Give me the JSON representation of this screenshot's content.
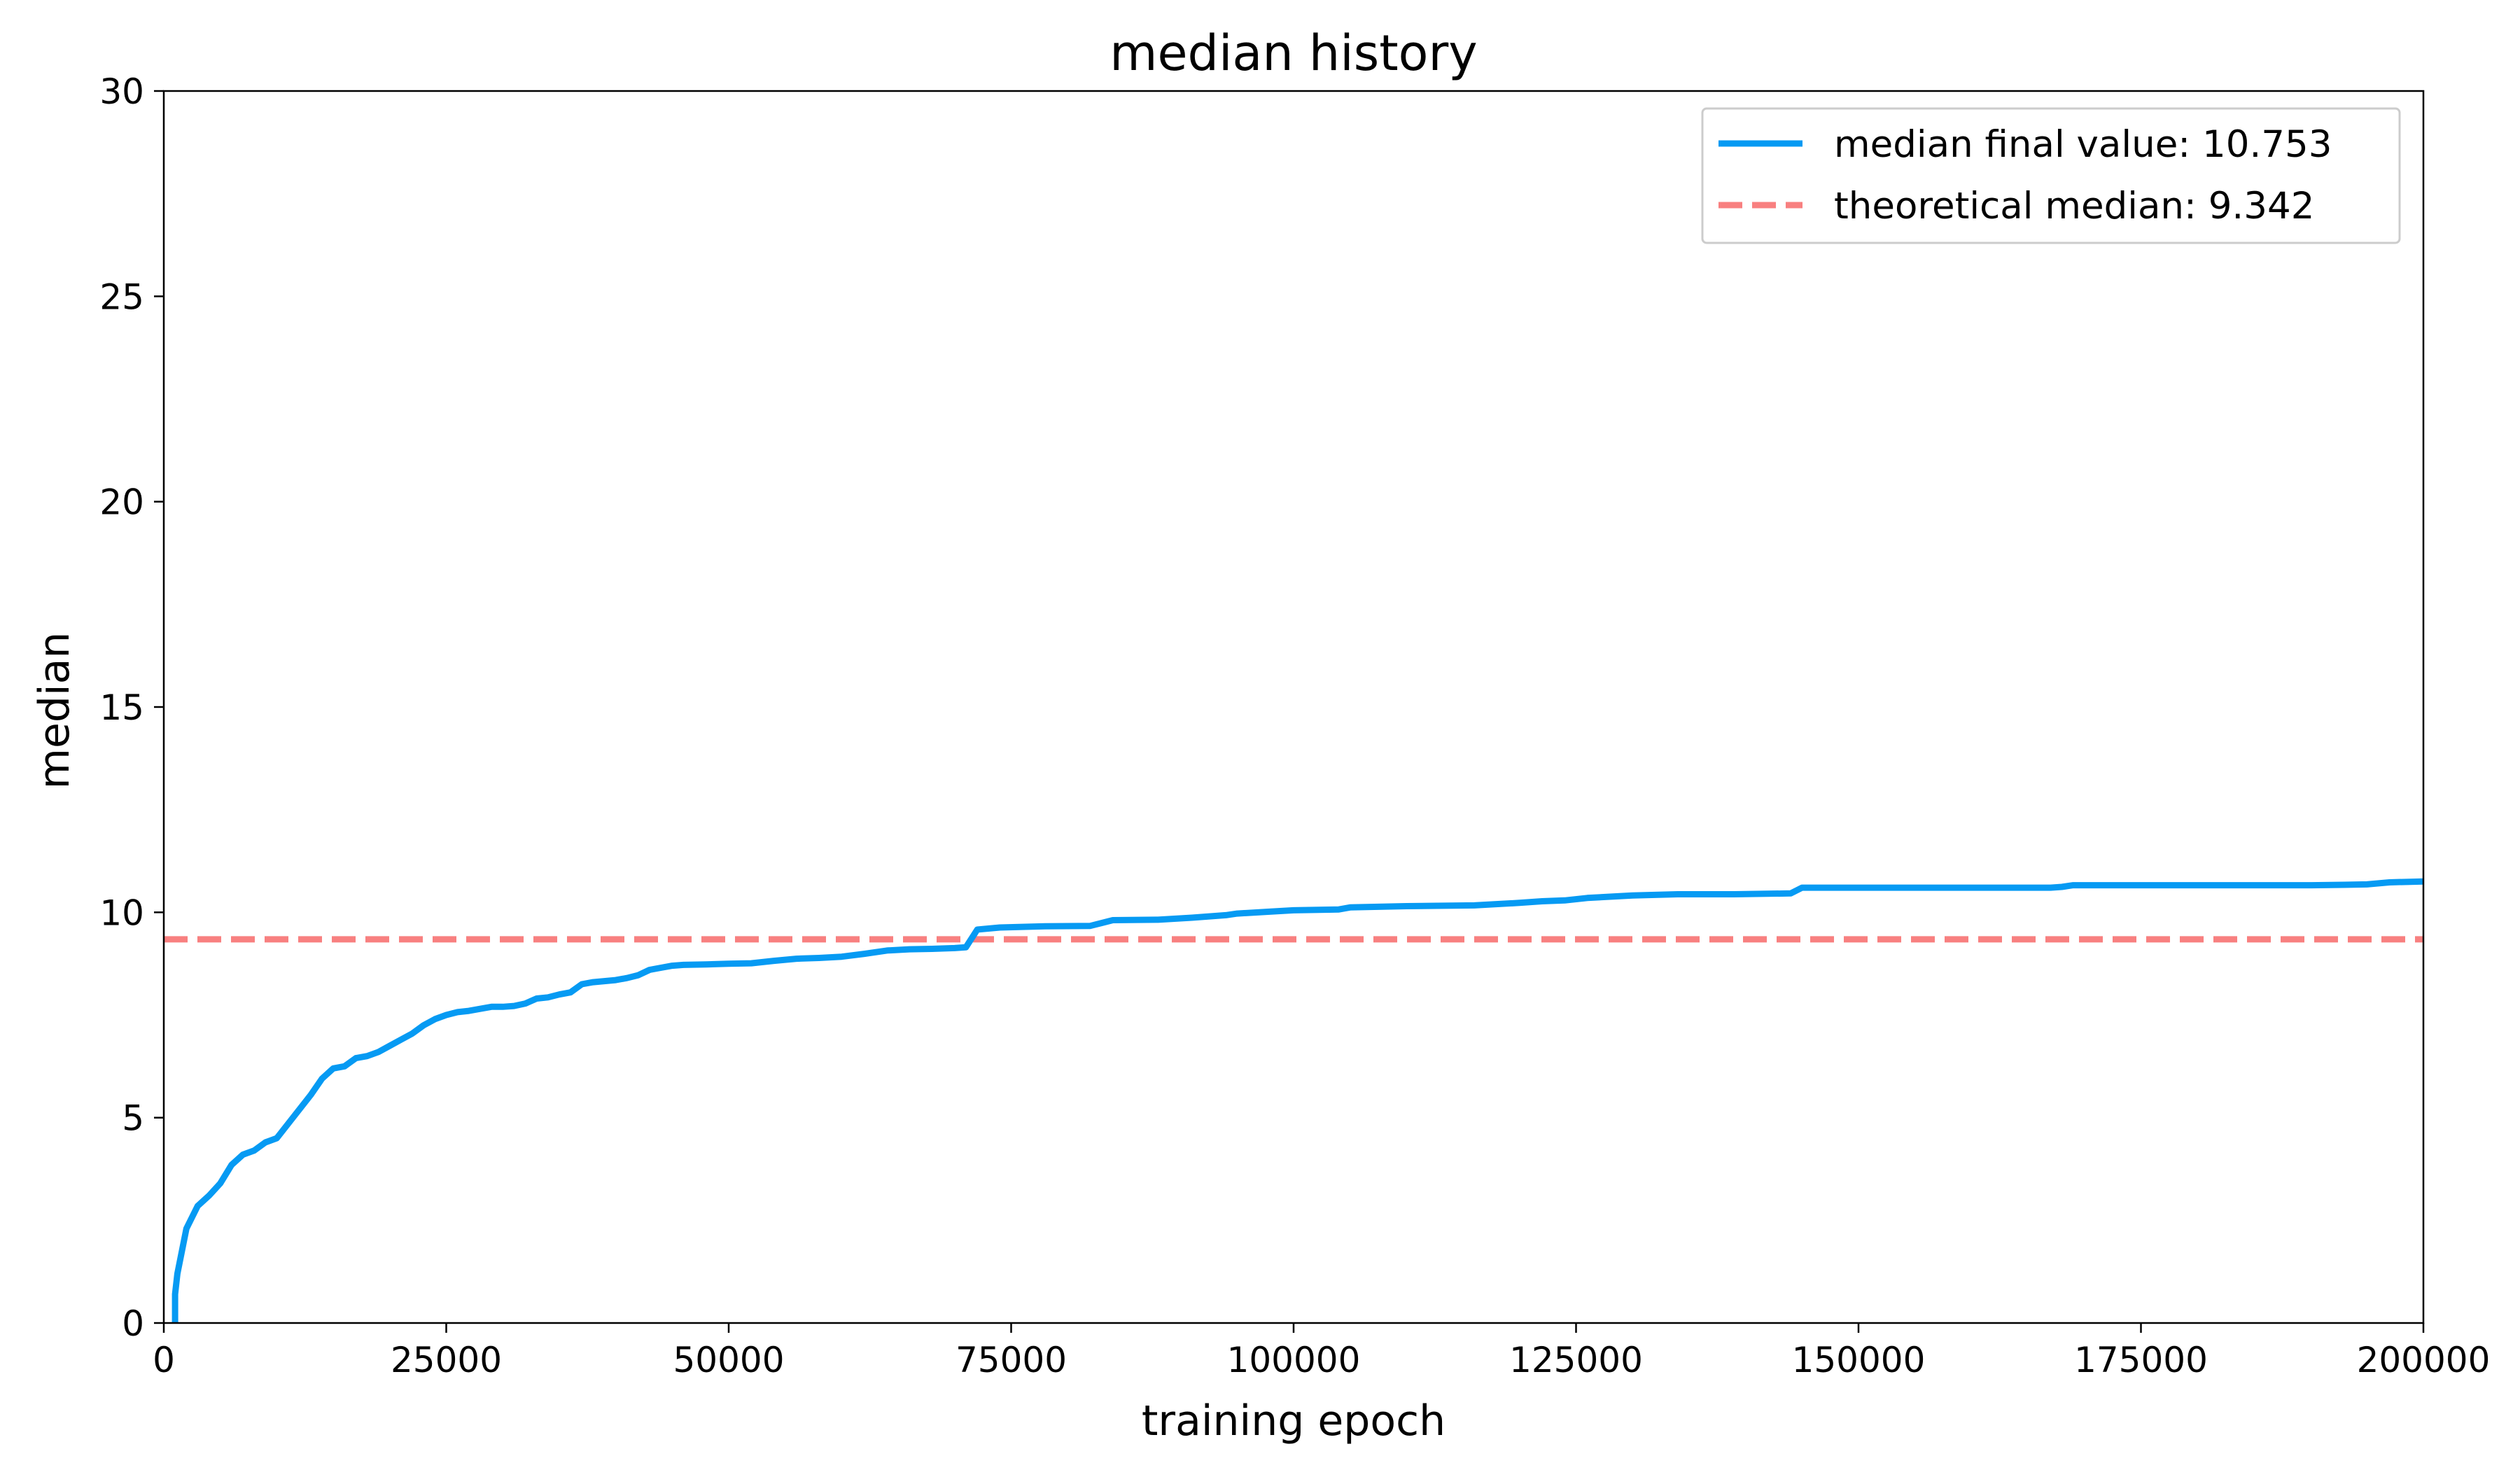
{
  "chart_data": {
    "type": "line",
    "title": "median history",
    "xlabel": "training epoch",
    "ylabel": "median",
    "xlim": [
      0,
      200000
    ],
    "ylim": [
      0,
      30
    ],
    "x_ticks": [
      0,
      25000,
      50000,
      75000,
      100000,
      125000,
      150000,
      175000,
      200000
    ],
    "y_ticks": [
      0,
      5,
      10,
      15,
      20,
      25,
      30
    ],
    "grid": false,
    "legend_position": "top-right",
    "series": [
      {
        "name": "median final value: 10.753",
        "style": "solid",
        "color": "#069af3",
        "x": [
          1000,
          1000,
          1200,
          2000,
          3000,
          4000,
          5000,
          6000,
          7000,
          8000,
          9000,
          10000,
          11000,
          12000,
          13000,
          14000,
          15000,
          16000,
          17000,
          18000,
          19000,
          20000,
          21000,
          22000,
          23000,
          24000,
          25000,
          26000,
          27000,
          28000,
          29000,
          30000,
          31000,
          32000,
          33000,
          34000,
          35000,
          36000,
          37000,
          38000,
          40000,
          41000,
          42000,
          43000,
          44000,
          45000,
          46000,
          48000,
          50000,
          52000,
          54000,
          56000,
          58000,
          60000,
          62000,
          64000,
          66000,
          68000,
          70000,
          71000,
          72000,
          74000,
          78000,
          82000,
          83000,
          84000,
          88000,
          91000,
          94000,
          95000,
          98000,
          100000,
          104000,
          105000,
          110000,
          116000,
          120000,
          122000,
          124000,
          126000,
          130000,
          134000,
          139000,
          144000,
          145000,
          150000,
          160000,
          167000,
          168000,
          169000,
          175000,
          185000,
          190000,
          193000,
          195000,
          197000,
          200000
        ],
        "y": [
          0.0,
          0.7,
          1.2,
          2.3,
          2.85,
          3.1,
          3.4,
          3.85,
          4.1,
          4.2,
          4.4,
          4.5,
          4.85,
          5.2,
          5.55,
          5.95,
          6.2,
          6.25,
          6.45,
          6.5,
          6.6,
          6.75,
          6.9,
          7.05,
          7.25,
          7.4,
          7.5,
          7.57,
          7.6,
          7.65,
          7.7,
          7.7,
          7.72,
          7.78,
          7.9,
          7.93,
          8.0,
          8.05,
          8.25,
          8.3,
          8.35,
          8.4,
          8.47,
          8.6,
          8.65,
          8.7,
          8.72,
          8.73,
          8.75,
          8.76,
          8.82,
          8.87,
          8.89,
          8.92,
          8.99,
          9.07,
          9.1,
          9.11,
          9.13,
          9.15,
          9.58,
          9.63,
          9.66,
          9.67,
          9.74,
          9.81,
          9.82,
          9.87,
          9.93,
          9.97,
          10.02,
          10.05,
          10.07,
          10.12,
          10.15,
          10.17,
          10.23,
          10.27,
          10.29,
          10.35,
          10.41,
          10.44,
          10.44,
          10.46,
          10.6,
          10.6,
          10.6,
          10.6,
          10.62,
          10.66,
          10.66,
          10.66,
          10.66,
          10.67,
          10.68,
          10.73,
          10.753
        ]
      },
      {
        "name": "theoretical median: 9.342",
        "style": "dashed",
        "color": "#f88080",
        "x": [
          0,
          200000
        ],
        "y": [
          9.342,
          9.342
        ]
      }
    ]
  }
}
